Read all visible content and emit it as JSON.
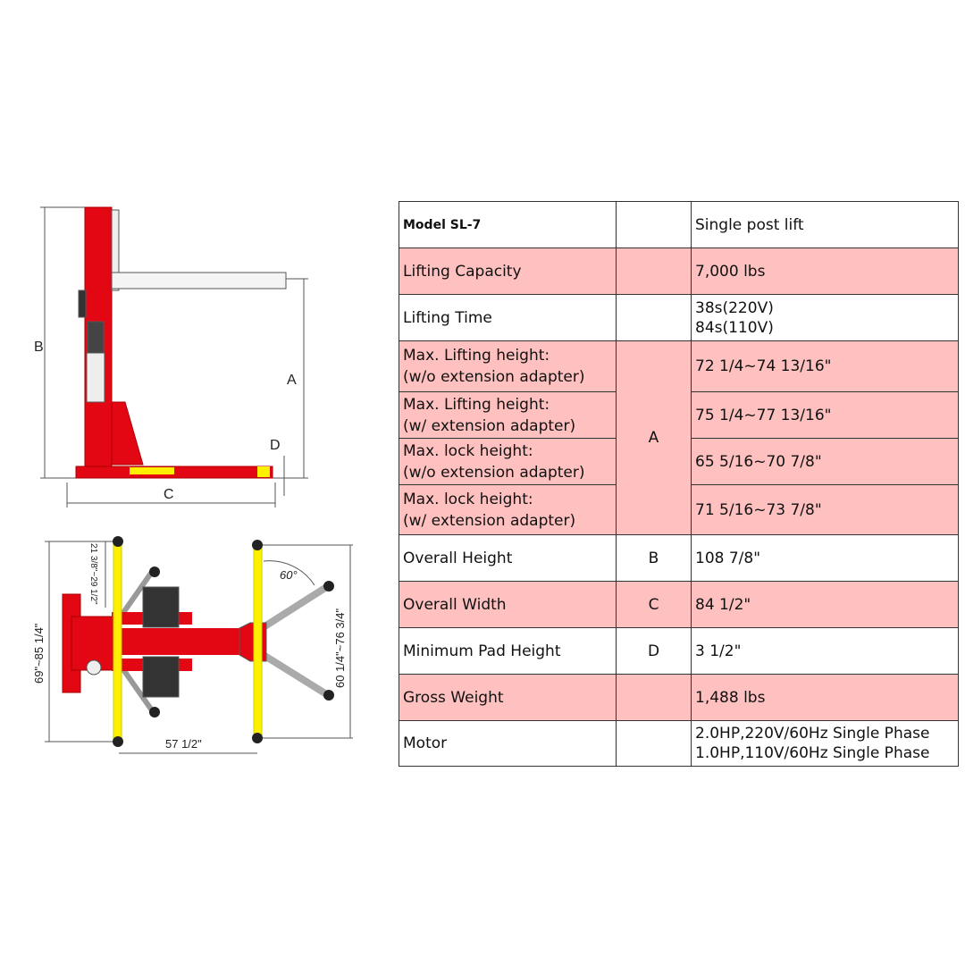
{
  "diagram": {
    "side_labels": {
      "A": "A",
      "B": "B",
      "C": "C",
      "D": "D"
    },
    "top_labels": {
      "width": "57 1/2\"",
      "arm_span": "60 1/4\"~76 3/4\"",
      "overall": "69\"~85 1/4\"",
      "short_arm": "21 3/8\"~29 1/2\"",
      "angle": "60°"
    },
    "colors": {
      "frame": "#e30613",
      "arms": "#ffef00",
      "pads": "#333333"
    }
  },
  "table": {
    "rows": [
      {
        "label": "Model SL-7",
        "code": "",
        "value": [
          "Single post lift"
        ],
        "pink": false
      },
      {
        "label": "Lifting Capacity",
        "code": "",
        "value": [
          "7,000 lbs"
        ],
        "pink": true
      },
      {
        "label": "Lifting Time",
        "code": "",
        "value": [
          "38s(220V)",
          "84s(110V)"
        ],
        "pink": false
      },
      {
        "label": [
          "Max. Lifting height:",
          "(w/o extension adapter)"
        ],
        "code": "A",
        "value": [
          "72 1/4~74 13/16\""
        ],
        "pink": true
      },
      {
        "label": [
          "Max. Lifting height:",
          "(w/ extension adapter)"
        ],
        "value": [
          "75 1/4~77 13/16\""
        ],
        "pink": true
      },
      {
        "label": [
          "Max. lock height:",
          "(w/o extension adapter)"
        ],
        "value": [
          "65 5/16~70 7/8\""
        ],
        "pink": true
      },
      {
        "label": [
          "Max. lock height:",
          "(w/ extension adapter)"
        ],
        "value": [
          "71 5/16~73 7/8\""
        ],
        "pink": true
      },
      {
        "label": "Overall Height",
        "code": "B",
        "value": [
          "108 7/8\""
        ],
        "pink": false
      },
      {
        "label": "Overall Width",
        "code": "C",
        "value": [
          "84 1/2\""
        ],
        "pink": true
      },
      {
        "label": "Minimum Pad Height",
        "code": "D",
        "value": [
          "3 1/2\""
        ],
        "pink": false
      },
      {
        "label": "Gross Weight",
        "code": "",
        "value": [
          "1,488 lbs"
        ],
        "pink": true
      },
      {
        "label": "Motor",
        "code": "",
        "value": [
          "2.0HP,220V/60Hz Single Phase",
          "1.0HP,110V/60Hz Single Phase"
        ],
        "pink": false
      }
    ]
  }
}
